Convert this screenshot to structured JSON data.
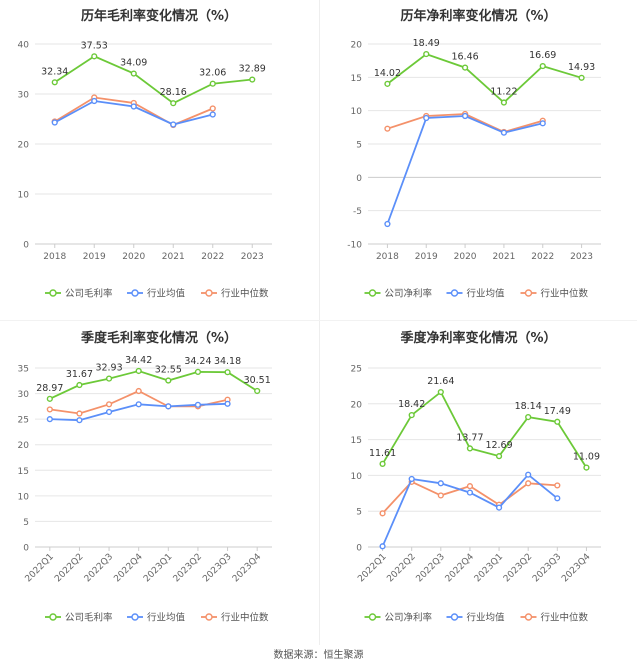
{
  "source_text": "数据来源：恒生聚源",
  "legend_labels": {
    "company_gross": "公司毛利率",
    "company_net": "公司净利率",
    "avg": "行业均值",
    "median": "行业中位数"
  },
  "colors": {
    "company": "#6cc938",
    "avg": "#5b8ff9",
    "median": "#f4916a"
  },
  "chart_data": [
    {
      "type": "line",
      "title": "历年毛利率变化情况（%）",
      "categories": [
        "2018",
        "2019",
        "2020",
        "2021",
        "2022",
        "2023"
      ],
      "ylim": [
        0,
        40
      ],
      "yticks": [
        0,
        10,
        20,
        30,
        40
      ],
      "series": [
        {
          "name": "公司毛利率",
          "values": [
            32.34,
            37.53,
            34.09,
            28.16,
            32.06,
            32.89
          ]
        },
        {
          "name": "行业均值",
          "values": [
            24.3,
            28.6,
            27.5,
            23.9,
            25.9,
            null
          ]
        },
        {
          "name": "行业中位数",
          "values": [
            24.5,
            29.3,
            28.2,
            23.8,
            27.1,
            null
          ]
        }
      ]
    },
    {
      "type": "line",
      "title": "历年净利率变化情况（%）",
      "categories": [
        "2018",
        "2019",
        "2020",
        "2021",
        "2022",
        "2023"
      ],
      "ylim": [
        -10,
        20
      ],
      "yticks": [
        -10,
        -5,
        0,
        5,
        10,
        15,
        20
      ],
      "series": [
        {
          "name": "公司净利率",
          "values": [
            14.02,
            18.49,
            16.46,
            11.22,
            16.69,
            14.93
          ]
        },
        {
          "name": "行业均值",
          "values": [
            -7.0,
            8.9,
            9.2,
            6.7,
            8.1,
            null
          ]
        },
        {
          "name": "行业中位数",
          "values": [
            7.3,
            9.2,
            9.5,
            6.8,
            8.5,
            null
          ]
        }
      ]
    },
    {
      "type": "line",
      "title": "季度毛利率变化情况（%）",
      "categories": [
        "2022Q1",
        "2022Q2",
        "2022Q3",
        "2022Q4",
        "2023Q1",
        "2023Q2",
        "2023Q3",
        "2023Q4"
      ],
      "ylim": [
        0,
        35
      ],
      "yticks": [
        0,
        5,
        10,
        15,
        20,
        25,
        30,
        35
      ],
      "series": [
        {
          "name": "公司毛利率",
          "values": [
            28.97,
            31.67,
            32.93,
            34.42,
            32.55,
            34.24,
            34.18,
            30.51
          ]
        },
        {
          "name": "行业均值",
          "values": [
            25.0,
            24.8,
            26.4,
            27.9,
            27.5,
            27.8,
            28.0,
            null
          ]
        },
        {
          "name": "行业中位数",
          "values": [
            26.9,
            26.1,
            27.9,
            30.5,
            27.5,
            27.5,
            28.8,
            null
          ]
        }
      ]
    },
    {
      "type": "line",
      "title": "季度净利率变化情况（%）",
      "categories": [
        "2022Q1",
        "2022Q2",
        "2022Q3",
        "2022Q4",
        "2023Q1",
        "2023Q2",
        "2023Q3",
        "2023Q4"
      ],
      "ylim": [
        0,
        25
      ],
      "yticks": [
        0,
        5,
        10,
        15,
        20,
        25
      ],
      "series": [
        {
          "name": "公司净利率",
          "values": [
            11.61,
            18.42,
            21.64,
            13.77,
            12.69,
            18.14,
            17.49,
            11.09
          ]
        },
        {
          "name": "行业均值",
          "values": [
            0.1,
            9.5,
            8.9,
            7.6,
            5.5,
            10.1,
            6.8,
            null
          ]
        },
        {
          "name": "行业中位数",
          "values": [
            4.7,
            9.1,
            7.2,
            8.5,
            5.9,
            8.9,
            8.6,
            null
          ]
        }
      ]
    }
  ]
}
